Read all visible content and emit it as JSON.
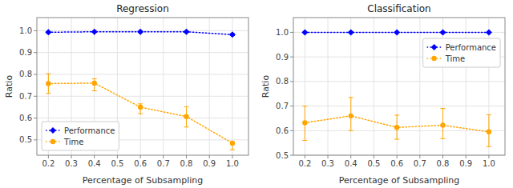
{
  "chart_data": [
    {
      "type": "line",
      "title": "Regression",
      "x_label": "Percentage of Subsampling",
      "y_label": "Ratio",
      "x": [
        0.2,
        0.4,
        0.6,
        0.8,
        1.0
      ],
      "xlim": [
        0.15,
        1.07
      ],
      "xticks": [
        0.2,
        0.3,
        0.4,
        0.5,
        0.6,
        0.7,
        0.8,
        0.9,
        {
          "value": 1.0,
          "label": "1.0"
        }
      ],
      "ylim": [
        0.43,
        1.06
      ],
      "yticks": [
        0.5,
        0.6,
        0.7,
        0.8,
        0.9,
        {
          "value": 1.0,
          "label": "1.0"
        }
      ],
      "grid": true,
      "legend": "lower left",
      "series": [
        {
          "name": "Performance",
          "color": "#0000ff",
          "marker": "diamond",
          "line_style": "dotted",
          "values": [
            0.993,
            0.995,
            0.995,
            0.995,
            0.982
          ],
          "errors": [
            0.003,
            0.002,
            0.002,
            0.002,
            0.004
          ]
        },
        {
          "name": "Time",
          "color": "#ffa500",
          "marker": "circle",
          "line_style": "dotted",
          "values": [
            0.758,
            0.76,
            0.65,
            0.607,
            0.485
          ],
          "errors_low": [
            0.045,
            0.035,
            0.03,
            0.048,
            0.03
          ],
          "errors_high": [
            0.045,
            0.02,
            0.015,
            0.045,
            0.005
          ]
        }
      ]
    },
    {
      "type": "line",
      "title": "Classification",
      "x_label": "Percentage of Subsampling",
      "y_label": "Ratio",
      "x": [
        0.2,
        0.4,
        0.6,
        0.8,
        1.0
      ],
      "xlim": [
        0.15,
        1.07
      ],
      "xticks": [
        0.2,
        0.3,
        0.4,
        0.5,
        0.6,
        0.7,
        0.8,
        0.9,
        {
          "value": 1.0,
          "label": "1.0"
        }
      ],
      "ylim": [
        0.5,
        1.06
      ],
      "yticks": [
        0.5,
        0.6,
        0.7,
        0.8,
        0.9,
        {
          "value": 1.0,
          "label": "1.0"
        }
      ],
      "grid": true,
      "legend": "upper right",
      "series": [
        {
          "name": "Performance",
          "color": "#0000ff",
          "marker": "diamond",
          "line_style": "dotted",
          "values": [
            1.0,
            1.0,
            1.0,
            1.0,
            1.0
          ],
          "errors": [
            0.001,
            0.001,
            0.001,
            0.001,
            0.001
          ]
        },
        {
          "name": "Time",
          "color": "#ffa500",
          "marker": "circle",
          "line_style": "dotted",
          "values": [
            0.632,
            0.66,
            0.613,
            0.622,
            0.595
          ],
          "errors_low": [
            0.072,
            0.06,
            0.048,
            0.055,
            0.06
          ],
          "errors_high": [
            0.068,
            0.075,
            0.05,
            0.068,
            0.07
          ]
        }
      ]
    }
  ]
}
